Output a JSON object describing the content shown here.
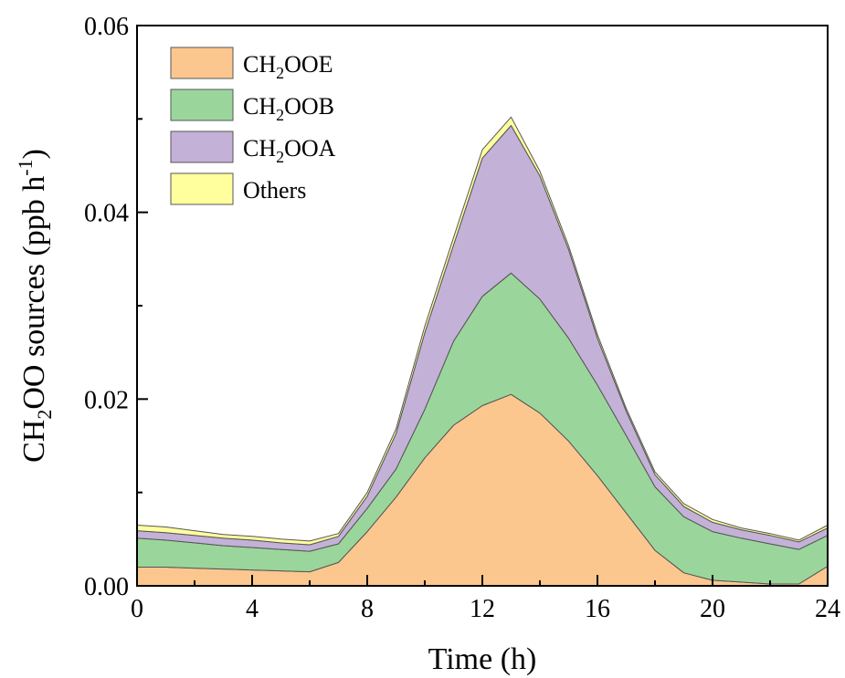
{
  "chart_data": {
    "type": "area",
    "stacked": true,
    "xlabel": "Time (h)",
    "ylabel": {
      "base": "CH",
      "sub": "2",
      "rest": "OO sources (ppb h",
      "sup": "-1",
      "end": ")"
    },
    "xlim": [
      0,
      24
    ],
    "ylim": [
      0,
      0.06
    ],
    "xticks": [
      0,
      4,
      8,
      12,
      16,
      20,
      24
    ],
    "xtick_labels": [
      "0",
      "4",
      "8",
      "12",
      "16",
      "20",
      "24"
    ],
    "yticks": [
      0,
      0.02,
      0.04,
      0.06
    ],
    "ytick_labels": [
      "0.00",
      "0.02",
      "0.04",
      "0.06"
    ],
    "grid": false,
    "legend_position": "top-left",
    "x": [
      0,
      1,
      2,
      3,
      4,
      5,
      6,
      7,
      8,
      9,
      10,
      11,
      12,
      13,
      14,
      15,
      16,
      17,
      18,
      19,
      20,
      21,
      22,
      23,
      24
    ],
    "series": [
      {
        "name": "CH2OOE",
        "label": {
          "base": "CH",
          "sub": "2",
          "rest": "OOE"
        },
        "color": "#FBC78F",
        "values": [
          0.002,
          0.002,
          0.0019,
          0.0018,
          0.0017,
          0.0016,
          0.0015,
          0.0025,
          0.0058,
          0.0095,
          0.0137,
          0.0172,
          0.0193,
          0.0205,
          0.0185,
          0.0155,
          0.0118,
          0.0078,
          0.0038,
          0.0014,
          0.0006,
          0.0004,
          0.0002,
          0.0002,
          0.0021
        ]
      },
      {
        "name": "CH2OOB",
        "label": {
          "base": "CH",
          "sub": "2",
          "rest": "OOB"
        },
        "color": "#9AD69B",
        "values": [
          0.0031,
          0.0029,
          0.0027,
          0.0025,
          0.0024,
          0.0023,
          0.0022,
          0.002,
          0.0025,
          0.003,
          0.0052,
          0.009,
          0.0117,
          0.013,
          0.0122,
          0.011,
          0.0097,
          0.0083,
          0.0068,
          0.006,
          0.0052,
          0.0047,
          0.0043,
          0.0037,
          0.0033
        ]
      },
      {
        "name": "CH2OOA",
        "label": {
          "base": "CH",
          "sub": "2",
          "rest": "OOA"
        },
        "color": "#C4B1D8",
        "values": [
          0.0008,
          0.0008,
          0.0008,
          0.0008,
          0.0008,
          0.0007,
          0.0007,
          0.0008,
          0.0013,
          0.0038,
          0.0082,
          0.0103,
          0.0148,
          0.0158,
          0.0132,
          0.0095,
          0.005,
          0.0026,
          0.0013,
          0.0011,
          0.001,
          0.0009,
          0.0009,
          0.0008,
          0.0008
        ]
      },
      {
        "name": "Others",
        "label": {
          "base": "Others",
          "sub": "",
          "rest": ""
        },
        "color": "#FFFF9E",
        "values": [
          0.0006,
          0.0006,
          0.0005,
          0.0004,
          0.0004,
          0.0004,
          0.0004,
          0.0003,
          0.0004,
          0.0005,
          0.0007,
          0.0008,
          0.0009,
          0.0009,
          0.0005,
          0.0004,
          0.0004,
          0.0003,
          0.0003,
          0.0003,
          0.0003,
          0.0002,
          0.0002,
          0.0002,
          0.0003
        ]
      }
    ]
  }
}
